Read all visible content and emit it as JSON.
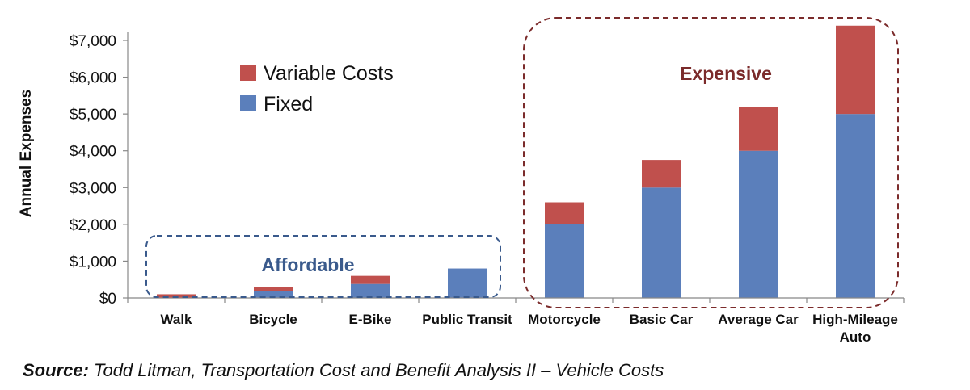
{
  "chart_data": {
    "type": "bar",
    "stacked": true,
    "ylabel": "Annual Expenses",
    "ylim": [
      0,
      7000
    ],
    "yticks": [
      0,
      1000,
      2000,
      3000,
      4000,
      5000,
      6000,
      7000
    ],
    "ytick_labels": [
      "$0",
      "$1,000",
      "$2,000",
      "$3,000",
      "$4,000",
      "$5,000",
      "$6,000",
      "$7,000"
    ],
    "categories": [
      "Walk",
      "Bicycle",
      "E-Bike",
      "Public Transit",
      "Motorcycle",
      "Basic Car",
      "Average Car",
      "High-Mileage Auto"
    ],
    "series": [
      {
        "name": "Fixed",
        "color": "#5b7fbb",
        "values": [
          0,
          180,
          380,
          800,
          2000,
          3000,
          4000,
          5000
        ]
      },
      {
        "name": "Variable Costs",
        "color": "#c0504d",
        "values": [
          100,
          120,
          220,
          0,
          600,
          750,
          1200,
          2400
        ]
      }
    ],
    "legend": {
      "placement": "top-left",
      "order": [
        "Variable Costs",
        "Fixed"
      ]
    },
    "annotations": [
      {
        "label": "Affordable",
        "color": "#3a5a8c",
        "categories": [
          "Walk",
          "Bicycle",
          "E-Bike",
          "Public Transit"
        ]
      },
      {
        "label": "Expensive",
        "color": "#7b2b2b",
        "categories": [
          "Motorcycle",
          "Basic Car",
          "Average Car",
          "High-Mileage Auto"
        ]
      }
    ],
    "grid": false
  },
  "source": {
    "label": "Source:",
    "text": "Todd Litman, Transportation Cost and Benefit Analysis II – Vehicle Costs"
  }
}
